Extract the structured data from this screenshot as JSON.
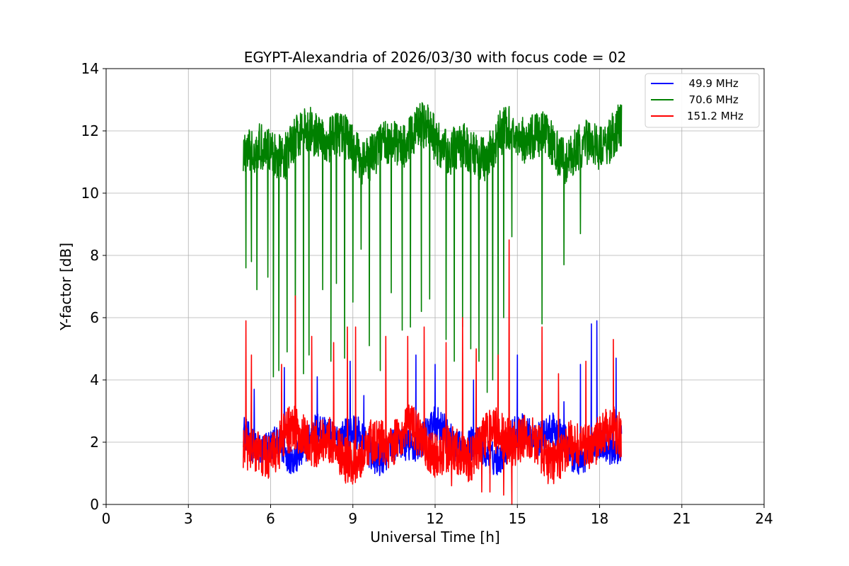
{
  "chart_data": {
    "type": "line",
    "title": "EGYPT-Alexandria of 2026/03/30 with focus code = 02",
    "xlabel": "Universal Time [h]",
    "ylabel": "Y-factor [dB]",
    "xlim": [
      0,
      24
    ],
    "ylim": [
      0,
      14
    ],
    "xticks": [
      0,
      3,
      6,
      9,
      12,
      15,
      18,
      21,
      24
    ],
    "yticks": [
      0,
      2,
      4,
      6,
      8,
      10,
      12,
      14
    ],
    "grid": true,
    "legend_position": "top-right",
    "series": [
      {
        "name": "  49.9 MHz",
        "color": "#0000ff",
        "x_range": [
          5.0,
          18.8
        ],
        "baseline": 2.0,
        "noise": 0.55,
        "spikes": [
          [
            5.4,
            3.7
          ],
          [
            6.5,
            4.4
          ],
          [
            7.7,
            4.1
          ],
          [
            8.9,
            4.6
          ],
          [
            9.4,
            3.5
          ],
          [
            11.3,
            4.8
          ],
          [
            12.0,
            4.5
          ],
          [
            13.4,
            4.0
          ],
          [
            14.6,
            1.3
          ],
          [
            15.0,
            4.8
          ],
          [
            16.7,
            3.3
          ],
          [
            17.3,
            4.5
          ],
          [
            17.7,
            5.8
          ],
          [
            17.9,
            5.9
          ],
          [
            18.6,
            4.7
          ]
        ]
      },
      {
        "name": "  70.6 MHz",
        "color": "#008000",
        "x_range": [
          5.0,
          18.8
        ],
        "baseline": 11.6,
        "noise": 0.75,
        "spikes": [
          [
            5.1,
            7.6
          ],
          [
            5.3,
            7.8
          ],
          [
            5.5,
            6.9
          ],
          [
            5.9,
            7.3
          ],
          [
            6.1,
            4.1
          ],
          [
            6.3,
            4.3
          ],
          [
            6.6,
            4.9
          ],
          [
            6.9,
            5.3
          ],
          [
            7.2,
            4.2
          ],
          [
            7.4,
            4.8
          ],
          [
            7.9,
            6.9
          ],
          [
            8.2,
            4.6
          ],
          [
            8.4,
            7.1
          ],
          [
            8.7,
            4.7
          ],
          [
            9.0,
            6.5
          ],
          [
            9.3,
            8.2
          ],
          [
            9.6,
            5.1
          ],
          [
            10.0,
            4.3
          ],
          [
            10.4,
            6.8
          ],
          [
            10.8,
            5.6
          ],
          [
            11.1,
            5.7
          ],
          [
            11.5,
            6.2
          ],
          [
            11.8,
            6.6
          ],
          [
            12.4,
            5.3
          ],
          [
            12.7,
            4.6
          ],
          [
            13.0,
            5.7
          ],
          [
            13.3,
            5.0
          ],
          [
            13.6,
            4.6
          ],
          [
            13.9,
            3.6
          ],
          [
            14.1,
            4.0
          ],
          [
            14.3,
            3.7
          ],
          [
            14.5,
            6.0
          ],
          [
            14.8,
            8.6
          ],
          [
            15.9,
            5.8
          ],
          [
            16.7,
            7.7
          ],
          [
            17.3,
            8.7
          ]
        ]
      },
      {
        "name": "151.2 MHz",
        "color": "#ff0000",
        "x_range": [
          5.0,
          18.8
        ],
        "baseline": 1.9,
        "noise": 0.75,
        "spikes": [
          [
            5.1,
            5.9
          ],
          [
            5.3,
            4.8
          ],
          [
            6.4,
            4.5
          ],
          [
            6.9,
            6.7
          ],
          [
            7.5,
            5.4
          ],
          [
            8.3,
            5.2
          ],
          [
            8.8,
            5.7
          ],
          [
            9.1,
            5.7
          ],
          [
            10.2,
            5.4
          ],
          [
            11.0,
            5.4
          ],
          [
            11.6,
            5.7
          ],
          [
            12.4,
            5.2
          ],
          [
            13.0,
            6.0
          ],
          [
            13.5,
            5.0
          ],
          [
            14.0,
            4.6
          ],
          [
            14.3,
            4.8
          ],
          [
            14.7,
            8.5
          ],
          [
            15.9,
            5.7
          ],
          [
            16.5,
            4.2
          ],
          [
            17.5,
            4.6
          ],
          [
            18.5,
            5.3
          ],
          [
            14.0,
            0.4
          ],
          [
            14.5,
            0.3
          ],
          [
            14.8,
            0.0
          ],
          [
            12.6,
            0.6
          ],
          [
            13.7,
            0.4
          ]
        ]
      }
    ]
  }
}
